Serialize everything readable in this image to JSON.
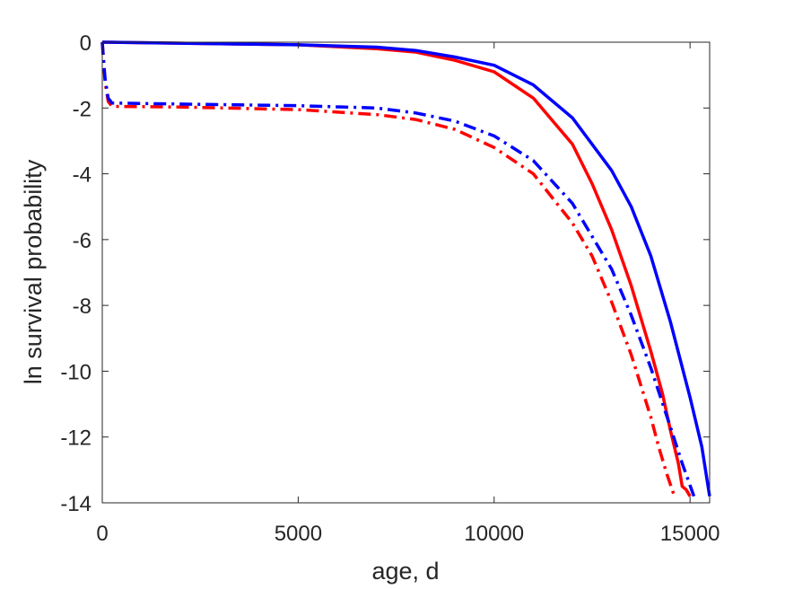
{
  "chart_data": {
    "type": "line",
    "title": "",
    "xlabel": "age, d",
    "ylabel": "ln survival probability",
    "xlim": [
      0,
      15500
    ],
    "ylim": [
      -14,
      0
    ],
    "xticks": [
      0,
      5000,
      10000,
      15000
    ],
    "xtick_labels": [
      "0",
      "5000",
      "10000",
      "15000"
    ],
    "yticks": [
      0,
      -2,
      -4,
      -6,
      -8,
      -10,
      -12,
      -14
    ],
    "ytick_labels": [
      "0",
      "-2",
      "-4",
      "-6",
      "-8",
      "-10",
      "-12",
      "-14"
    ],
    "grid": false,
    "legend": "none",
    "series": [
      {
        "color": "#ff0000",
        "style": "solid",
        "x": [
          0,
          5000,
          7000,
          8000,
          9000,
          10000,
          11000,
          12000,
          12500,
          13000,
          13500,
          14000,
          14300,
          14500,
          14700,
          14800,
          14900,
          15000
        ],
        "y": [
          0,
          -0.08,
          -0.2,
          -0.3,
          -0.55,
          -0.9,
          -1.7,
          -3.1,
          -4.3,
          -5.7,
          -7.4,
          -9.4,
          -10.7,
          -11.8,
          -12.8,
          -13.5,
          -13.6,
          -13.8
        ]
      },
      {
        "color": "#0000ff",
        "style": "solid",
        "x": [
          0,
          5000,
          7000,
          8000,
          9000,
          10000,
          11000,
          12000,
          13000,
          13500,
          14000,
          14500,
          15000,
          15300,
          15500
        ],
        "y": [
          0,
          -0.08,
          -0.15,
          -0.25,
          -0.45,
          -0.7,
          -1.3,
          -2.3,
          -3.9,
          -5.0,
          -6.5,
          -8.5,
          -10.8,
          -12.3,
          -13.8
        ]
      },
      {
        "color": "#ff0000",
        "style": "dashdot",
        "x": [
          0,
          30,
          70,
          150,
          250,
          2000,
          5000,
          7000,
          8000,
          9000,
          10000,
          11000,
          12000,
          12500,
          13000,
          13500,
          14000,
          14200,
          14400,
          14600
        ],
        "y": [
          0,
          -0.5,
          -1.2,
          -1.8,
          -1.95,
          -1.97,
          -2.05,
          -2.2,
          -2.35,
          -2.65,
          -3.2,
          -4.0,
          -5.5,
          -6.5,
          -7.9,
          -9.5,
          -11.4,
          -12.3,
          -13.1,
          -13.8
        ]
      },
      {
        "color": "#0000ff",
        "style": "dashdot",
        "x": [
          0,
          30,
          70,
          150,
          250,
          2000,
          5000,
          7000,
          8000,
          9000,
          10000,
          11000,
          12000,
          13000,
          13500,
          14000,
          14500,
          14800,
          15100
        ],
        "y": [
          0,
          -0.5,
          -1.1,
          -1.7,
          -1.85,
          -1.88,
          -1.93,
          -2.0,
          -2.15,
          -2.4,
          -2.85,
          -3.6,
          -4.9,
          -6.9,
          -8.3,
          -9.9,
          -11.7,
          -12.8,
          -13.8
        ]
      }
    ]
  }
}
